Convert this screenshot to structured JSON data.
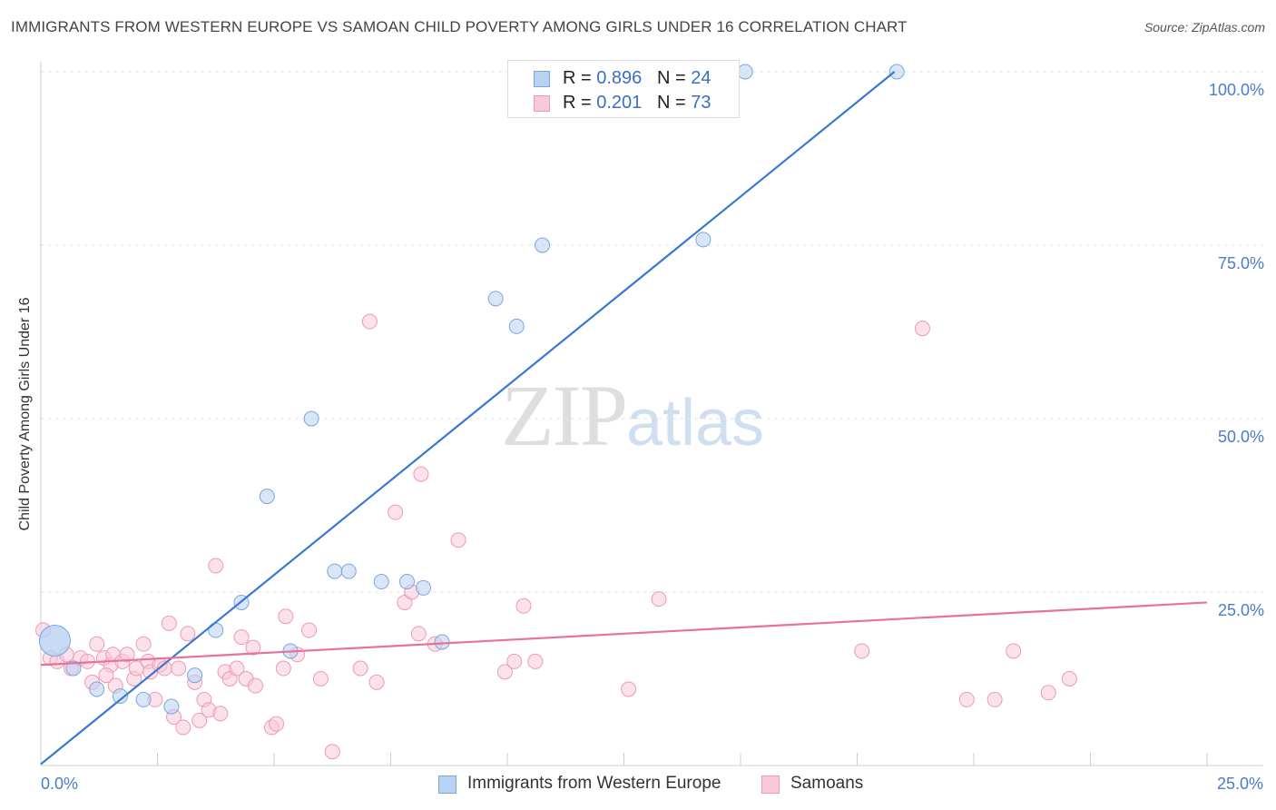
{
  "header": {
    "title": "IMMIGRANTS FROM WESTERN EUROPE VS SAMOAN CHILD POVERTY AMONG GIRLS UNDER 16 CORRELATION CHART",
    "source": "Source: ZipAtlas.com"
  },
  "watermark": {
    "zip": "ZIP",
    "atlas": "atlas"
  },
  "legend": {
    "rows": [
      {
        "r_label": "R = ",
        "r_value": "0.896",
        "n_label": "N = ",
        "n_value": "24"
      },
      {
        "r_label": "R = ",
        "r_value": "0.201",
        "n_label": "N = ",
        "n_value": "73"
      }
    ],
    "bottom": [
      "Immigrants from Western Europe",
      "Samoans"
    ]
  },
  "colors": {
    "blue_fill": "#b9d2f2",
    "blue_stroke": "#7aa6de",
    "blue_line": "#3a78d4",
    "pink_fill": "#f8c9d7",
    "pink_stroke": "#ee9ab3",
    "pink_line": "#e8729a",
    "grid": "#e3e3e3"
  },
  "chart_data": {
    "type": "scatter",
    "title": "IMMIGRANTS FROM WESTERN EUROPE VS SAMOAN CHILD POVERTY AMONG GIRLS UNDER 16 CORRELATION CHART",
    "xlabel": "",
    "ylabel": "Child Poverty Among Girls Under 16",
    "xlim": [
      0,
      25
    ],
    "ylim": [
      0,
      100
    ],
    "x_ticks": [
      "0.0%",
      "25.0%"
    ],
    "y_ticks": [
      {
        "value": 25,
        "label": "25.0%"
      },
      {
        "value": 50,
        "label": "50.0%"
      },
      {
        "value": 75,
        "label": "75.0%"
      },
      {
        "value": 100,
        "label": "100.0%"
      }
    ],
    "series": [
      {
        "name": "Immigrants from Western Europe",
        "color": "blue",
        "R": 0.896,
        "N": 24,
        "trend": {
          "x0": 0.0,
          "y0": 0.2,
          "x1": 18.3,
          "y1": 100
        },
        "points": [
          {
            "x": 0.3,
            "y": 18,
            "big": true
          },
          {
            "x": 0.7,
            "y": 14
          },
          {
            "x": 1.2,
            "y": 11
          },
          {
            "x": 1.7,
            "y": 10
          },
          {
            "x": 2.2,
            "y": 9.5
          },
          {
            "x": 2.8,
            "y": 8.5
          },
          {
            "x": 3.3,
            "y": 13
          },
          {
            "x": 3.75,
            "y": 19.5
          },
          {
            "x": 4.3,
            "y": 23.5
          },
          {
            "x": 4.85,
            "y": 38.8
          },
          {
            "x": 5.35,
            "y": 16.5
          },
          {
            "x": 5.8,
            "y": 50
          },
          {
            "x": 6.3,
            "y": 28
          },
          {
            "x": 6.6,
            "y": 28
          },
          {
            "x": 7.3,
            "y": 26.5
          },
          {
            "x": 7.85,
            "y": 26.5
          },
          {
            "x": 8.2,
            "y": 25.6
          },
          {
            "x": 8.6,
            "y": 17.8
          },
          {
            "x": 9.75,
            "y": 67.3
          },
          {
            "x": 10.2,
            "y": 63.3
          },
          {
            "x": 10.75,
            "y": 75
          },
          {
            "x": 14.2,
            "y": 75.8
          },
          {
            "x": 15.1,
            "y": 100
          },
          {
            "x": 18.35,
            "y": 100
          }
        ]
      },
      {
        "name": "Samoans",
        "color": "pink",
        "R": 0.201,
        "N": 73,
        "trend": {
          "x0": 0.0,
          "y0": 14.5,
          "x1": 25.0,
          "y1": 23.5
        },
        "points": [
          {
            "x": 0.05,
            "y": 19.5
          },
          {
            "x": 0.2,
            "y": 15.5
          },
          {
            "x": 0.35,
            "y": 15
          },
          {
            "x": 0.55,
            "y": 16
          },
          {
            "x": 0.65,
            "y": 14
          },
          {
            "x": 0.85,
            "y": 15.5
          },
          {
            "x": 1.0,
            "y": 15
          },
          {
            "x": 1.1,
            "y": 12
          },
          {
            "x": 1.2,
            "y": 17.5
          },
          {
            "x": 1.35,
            "y": 15.5
          },
          {
            "x": 1.5,
            "y": 14.5
          },
          {
            "x": 1.55,
            "y": 16
          },
          {
            "x": 1.6,
            "y": 11.5
          },
          {
            "x": 1.75,
            "y": 15
          },
          {
            "x": 1.85,
            "y": 16
          },
          {
            "x": 2.0,
            "y": 12.5
          },
          {
            "x": 2.05,
            "y": 14
          },
          {
            "x": 2.2,
            "y": 17.5
          },
          {
            "x": 2.3,
            "y": 15
          },
          {
            "x": 2.35,
            "y": 13.5
          },
          {
            "x": 2.45,
            "y": 9.5
          },
          {
            "x": 2.55,
            "y": 14.5
          },
          {
            "x": 2.65,
            "y": 14
          },
          {
            "x": 2.75,
            "y": 20.5
          },
          {
            "x": 2.85,
            "y": 7
          },
          {
            "x": 2.95,
            "y": 14
          },
          {
            "x": 3.05,
            "y": 5.5
          },
          {
            "x": 3.15,
            "y": 19
          },
          {
            "x": 3.3,
            "y": 12
          },
          {
            "x": 3.4,
            "y": 6.5
          },
          {
            "x": 3.5,
            "y": 9.5
          },
          {
            "x": 3.6,
            "y": 8
          },
          {
            "x": 3.75,
            "y": 28.8
          },
          {
            "x": 3.85,
            "y": 7.5
          },
          {
            "x": 3.95,
            "y": 13.5
          },
          {
            "x": 4.05,
            "y": 12.5
          },
          {
            "x": 4.2,
            "y": 14
          },
          {
            "x": 4.3,
            "y": 18.5
          },
          {
            "x": 4.4,
            "y": 12.5
          },
          {
            "x": 4.55,
            "y": 17
          },
          {
            "x": 4.6,
            "y": 11.5
          },
          {
            "x": 4.95,
            "y": 5.5
          },
          {
            "x": 5.05,
            "y": 6
          },
          {
            "x": 5.2,
            "y": 14
          },
          {
            "x": 5.25,
            "y": 21.5
          },
          {
            "x": 5.5,
            "y": 16
          },
          {
            "x": 5.75,
            "y": 19.5
          },
          {
            "x": 6.0,
            "y": 12.5
          },
          {
            "x": 6.25,
            "y": 2
          },
          {
            "x": 6.85,
            "y": 14
          },
          {
            "x": 7.05,
            "y": 64
          },
          {
            "x": 7.2,
            "y": 12
          },
          {
            "x": 7.6,
            "y": 36.5
          },
          {
            "x": 7.8,
            "y": 23.5
          },
          {
            "x": 7.95,
            "y": 25
          },
          {
            "x": 8.1,
            "y": 19
          },
          {
            "x": 8.15,
            "y": 42
          },
          {
            "x": 8.45,
            "y": 17.5
          },
          {
            "x": 8.95,
            "y": 32.5
          },
          {
            "x": 9.95,
            "y": 13.5
          },
          {
            "x": 10.15,
            "y": 15
          },
          {
            "x": 10.35,
            "y": 23
          },
          {
            "x": 10.6,
            "y": 15
          },
          {
            "x": 12.6,
            "y": 11
          },
          {
            "x": 13.25,
            "y": 24
          },
          {
            "x": 17.6,
            "y": 16.5
          },
          {
            "x": 18.9,
            "y": 63
          },
          {
            "x": 19.85,
            "y": 9.5
          },
          {
            "x": 20.45,
            "y": 9.5
          },
          {
            "x": 20.85,
            "y": 16.5
          },
          {
            "x": 21.6,
            "y": 10.5
          },
          {
            "x": 22.05,
            "y": 12.5
          },
          {
            "x": 1.4,
            "y": 13
          }
        ]
      }
    ]
  },
  "axis_labels": {
    "x_left": "0.0%",
    "x_right": "25.0%",
    "ylabel": "Child Poverty Among Girls Under 16"
  }
}
